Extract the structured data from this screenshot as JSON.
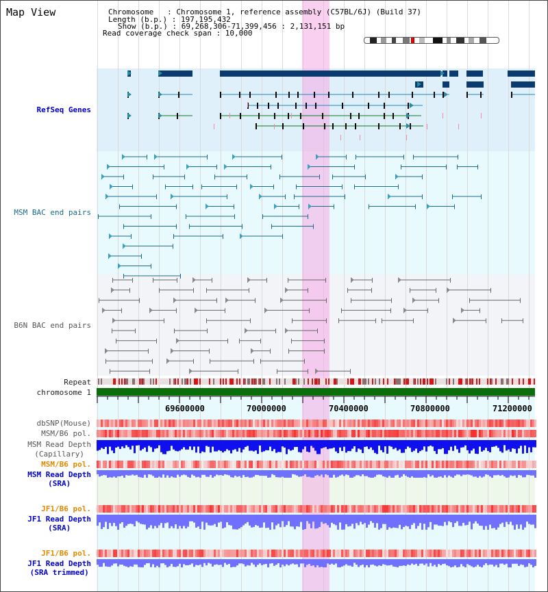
{
  "title": "Map View",
  "info": {
    "chromosome": "Chromosome   : Chromosome 1, reference assembly (C57BL/6J) (Build 37)",
    "length": "Length (b.p.) : 197,195,432",
    "show": "Show (b.p.) : 69,268,306-71,399,456 : 2,131,151 bp",
    "coverage": "Read coverage check span : 10,000"
  },
  "tracks": {
    "refseq": "RefSeq Genes",
    "msm_bac": "MSM BAC end pairs",
    "b6n_bac": "B6N BAC end pairs",
    "repeat": "Repeat",
    "chrom": "chromosome 1",
    "dbsnp": "dbSNP(Mouse)",
    "msm_b6_pol1": "MSM/B6 pol.",
    "msm_depth_cap_1": "MSM Read Depth",
    "msm_depth_cap_2": "(Capillary)",
    "msm_b6_pol2": "MSM/B6 pol.",
    "msm_depth_sra_1": "MSM Read Depth",
    "msm_depth_sra_2": "(SRA)",
    "jf1_b6_pol1": "JF1/B6 pol.",
    "jf1_depth_sra_1": "JF1 Read Depth",
    "jf1_depth_sra_2": "(SRA)",
    "jf1_b6_pol2": "JF1/B6 pol.",
    "jf1_depth_trim_1": "JF1 Read Depth",
    "jf1_depth_trim_2": "(SRA trimmed)"
  },
  "axis": {
    "ticks": [
      "69600000",
      "70000000",
      "70400000",
      "70800000",
      "71200000"
    ]
  },
  "colors": {
    "refseq_bg": "#dff0fa",
    "msm_bg": "#e8fafd",
    "b6n_bg": "#f2f4f8",
    "coverage_bg": "#e8fafd",
    "highlight": "#f6b6ea",
    "gene_dark": "#0a3a6e",
    "gene_green": "#0a7a1a",
    "msm_line": "#1a6b8a",
    "b6n_line": "#666666",
    "chrom_green": "#0a6e0a",
    "depth_blue": "#1010ee",
    "depth_light": "#7070ff",
    "pol_red": "#ee2222"
  }
}
